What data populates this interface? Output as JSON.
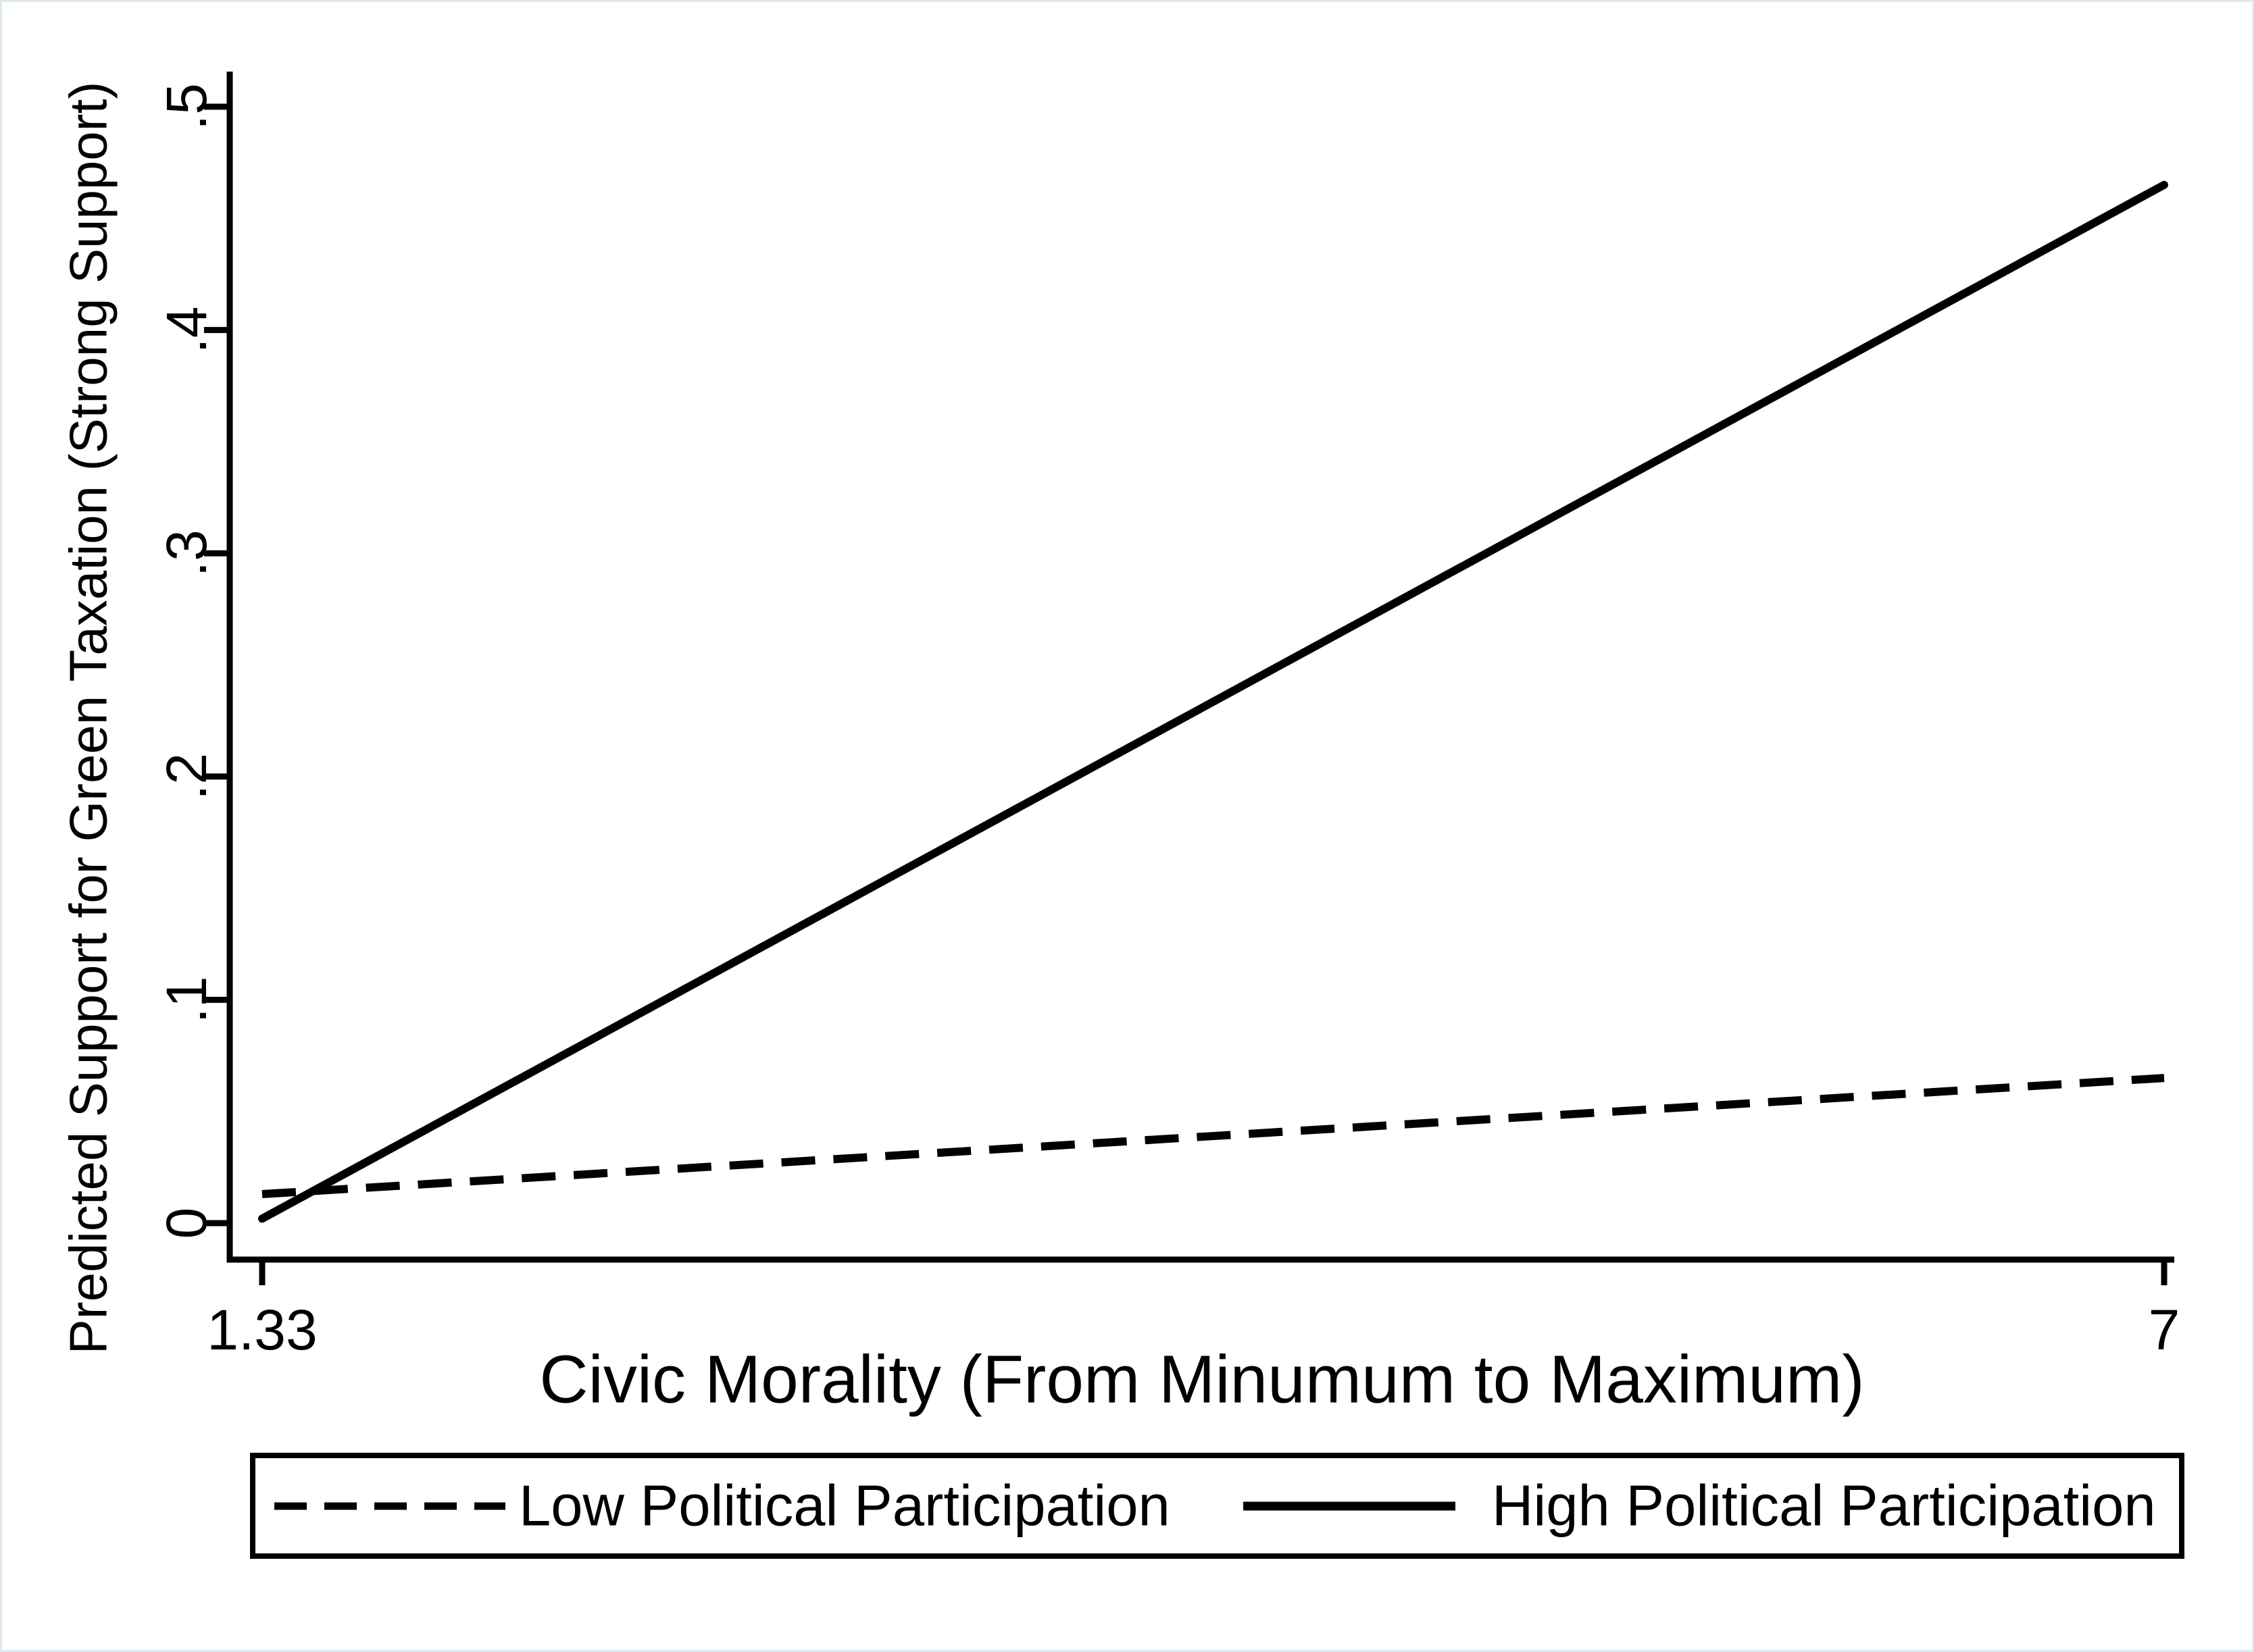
{
  "chart_data": {
    "type": "line",
    "title": "",
    "xlabel": "Civic Morality (From Minumum to Maximum)",
    "ylabel": "Predicted Support for Green Taxation (Strong Support)",
    "xlim": [
      1.33,
      7
    ],
    "ylim": [
      0,
      0.5
    ],
    "grid": false,
    "legend_position": "bottom-box",
    "x_ticks": [
      {
        "value": 1.33,
        "label": "1.33"
      },
      {
        "value": 7,
        "label": "7"
      }
    ],
    "y_ticks": [
      {
        "value": 0,
        "label": "0"
      },
      {
        "value": 0.1,
        "label": ".1"
      },
      {
        "value": 0.2,
        "label": ".2"
      },
      {
        "value": 0.3,
        "label": ".3"
      },
      {
        "value": 0.4,
        "label": ".4"
      },
      {
        "value": 0.5,
        "label": ".5"
      }
    ],
    "series": [
      {
        "name": "Low Political Participation",
        "style": "dashed",
        "x": [
          1.33,
          7
        ],
        "y": [
          0.013,
          0.065
        ]
      },
      {
        "name": "High Political Participation",
        "style": "solid",
        "x": [
          1.33,
          7
        ],
        "y": [
          0.002,
          0.465
        ]
      }
    ],
    "colors": {
      "line": "#000000",
      "background": "#ffffff",
      "frame": "#dde9ee"
    }
  }
}
